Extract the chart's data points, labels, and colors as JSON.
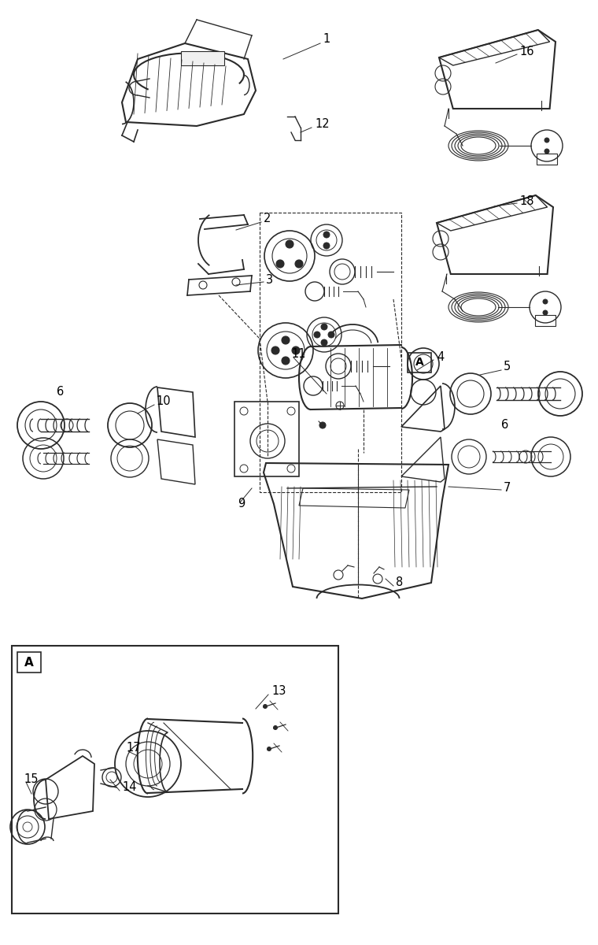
{
  "bg_color": "#ffffff",
  "line_color": "#2a2a2a",
  "fig_width": 7.6,
  "fig_height": 12.0,
  "dpi": 100
}
